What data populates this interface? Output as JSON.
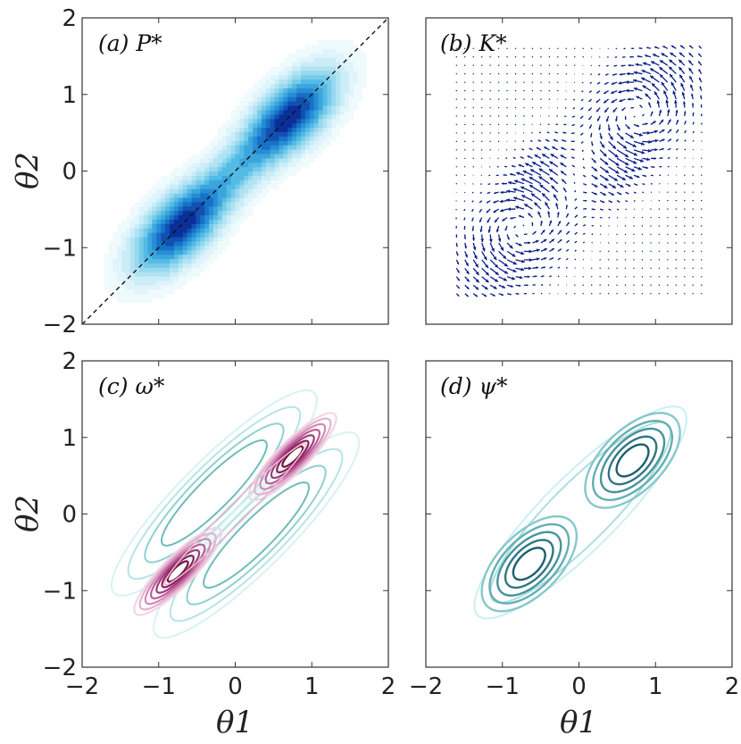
{
  "chart_data": {
    "type": "contour",
    "xlabel": "θ1",
    "ylabel": "θ2",
    "xlim": [
      -2,
      2
    ],
    "ylim": [
      -2,
      2
    ],
    "ticks": [
      -2,
      -1,
      0,
      1,
      2
    ],
    "tick_labels": [
      "−2",
      "−1",
      "0",
      "1",
      "2"
    ],
    "panels": [
      {
        "id": "a",
        "title": "(a) P*",
        "kind": "filled-contour",
        "colormap": [
          "#ffffff",
          "#d9f2fa",
          "#9fdcf0",
          "#4cb8e4",
          "#1a7fd0",
          "#0a2f9a"
        ],
        "peaks": [
          {
            "x": -0.75,
            "y": -0.75
          },
          {
            "x": 0.75,
            "y": 0.75
          }
        ],
        "diagonal": {
          "from": [
            -2,
            -2
          ],
          "to": [
            2,
            2
          ],
          "style": "dashed"
        }
      },
      {
        "id": "b",
        "title": "(b) K*",
        "kind": "quiver",
        "color": "#0b1f8a",
        "grid_range": [
          -1.6,
          1.6
        ],
        "circulation": "counterclockwise around the diagonal"
      },
      {
        "id": "c",
        "title": "(c) ω*",
        "kind": "line-contour",
        "positive_color": "#7b0e3a",
        "negative_color": "#7fcfcf",
        "peaks": [
          {
            "x": -0.75,
            "y": -0.75
          },
          {
            "x": 0.75,
            "y": 0.75
          }
        ]
      },
      {
        "id": "d",
        "title": "(d) ψ*",
        "kind": "line-contour",
        "color": "#1d5e6e",
        "peaks": [
          {
            "x": -0.65,
            "y": -0.65
          },
          {
            "x": 0.7,
            "y": 0.7
          }
        ]
      }
    ]
  }
}
